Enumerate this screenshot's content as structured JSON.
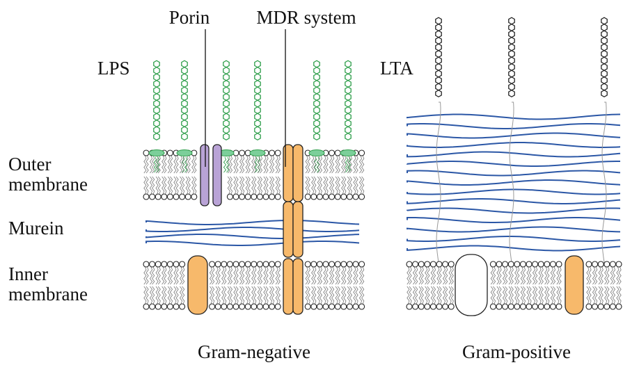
{
  "labels": {
    "porin": "Porin",
    "mdr_system": "MDR system",
    "lps": "LPS",
    "lta": "LTA",
    "outer_membrane": [
      "Outer",
      "membrane"
    ],
    "murein": "Murein",
    "inner_membrane": [
      "Inner",
      "membrane"
    ],
    "gram_negative": "Gram-negative",
    "gram_positive": "Gram-positive"
  }
}
